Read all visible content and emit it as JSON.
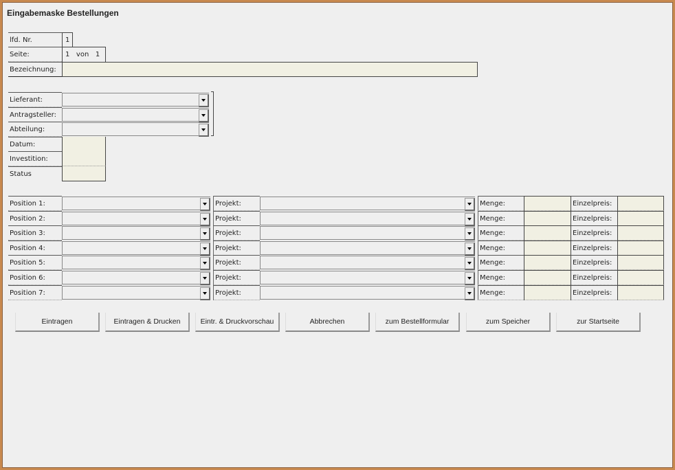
{
  "title": "Eingabemaske Bestellungen",
  "header": {
    "lfd_nr_label": "lfd. Nr.",
    "lfd_nr_value": "1",
    "seite_label": "Seite:",
    "seite_current": "1",
    "seite_von": "von",
    "seite_total": "1",
    "bezeichnung_label": "Bezeichnung:",
    "bezeichnung_value": ""
  },
  "details": {
    "lieferant_label": "Lieferant:",
    "antragsteller_label": "Antragsteller:",
    "abteilung_label": "Abteilung:",
    "datum_label": "Datum:",
    "investition_label": "Investition:",
    "status_label": "Status"
  },
  "positions": [
    {
      "label": "Position 1:",
      "projekt_label": "Projekt:",
      "menge_label": "Menge:",
      "einzelpreis_label": "Einzelpreis:"
    },
    {
      "label": "Position 2:",
      "projekt_label": "Projekt:",
      "menge_label": "Menge:",
      "einzelpreis_label": "Einzelpreis:"
    },
    {
      "label": "Position 3:",
      "projekt_label": "Projekt:",
      "menge_label": "Menge:",
      "einzelpreis_label": "Einzelpreis:"
    },
    {
      "label": "Position 4:",
      "projekt_label": "Projekt:",
      "menge_label": "Menge:",
      "einzelpreis_label": "Einzelpreis:"
    },
    {
      "label": "Position 5:",
      "projekt_label": "Projekt:",
      "menge_label": "Menge:",
      "einzelpreis_label": "Einzelpreis:"
    },
    {
      "label": "Position 6:",
      "projekt_label": "Projekt:",
      "menge_label": "Menge:",
      "einzelpreis_label": "Einzelpreis:"
    },
    {
      "label": "Position 7:",
      "projekt_label": "Projekt:",
      "menge_label": "Menge:",
      "einzelpreis_label": "Einzelpreis:"
    }
  ],
  "buttons": [
    "Eintragen",
    "Eintragen & Drucken",
    "Eintr. & Druckvorschau",
    "Abbrechen",
    "zum Bestellformular",
    "zum Speicher",
    "zur Startseite"
  ],
  "colors": {
    "frame": "#c8894f",
    "background": "#efefef",
    "input_fill": "#f1f0e3"
  }
}
